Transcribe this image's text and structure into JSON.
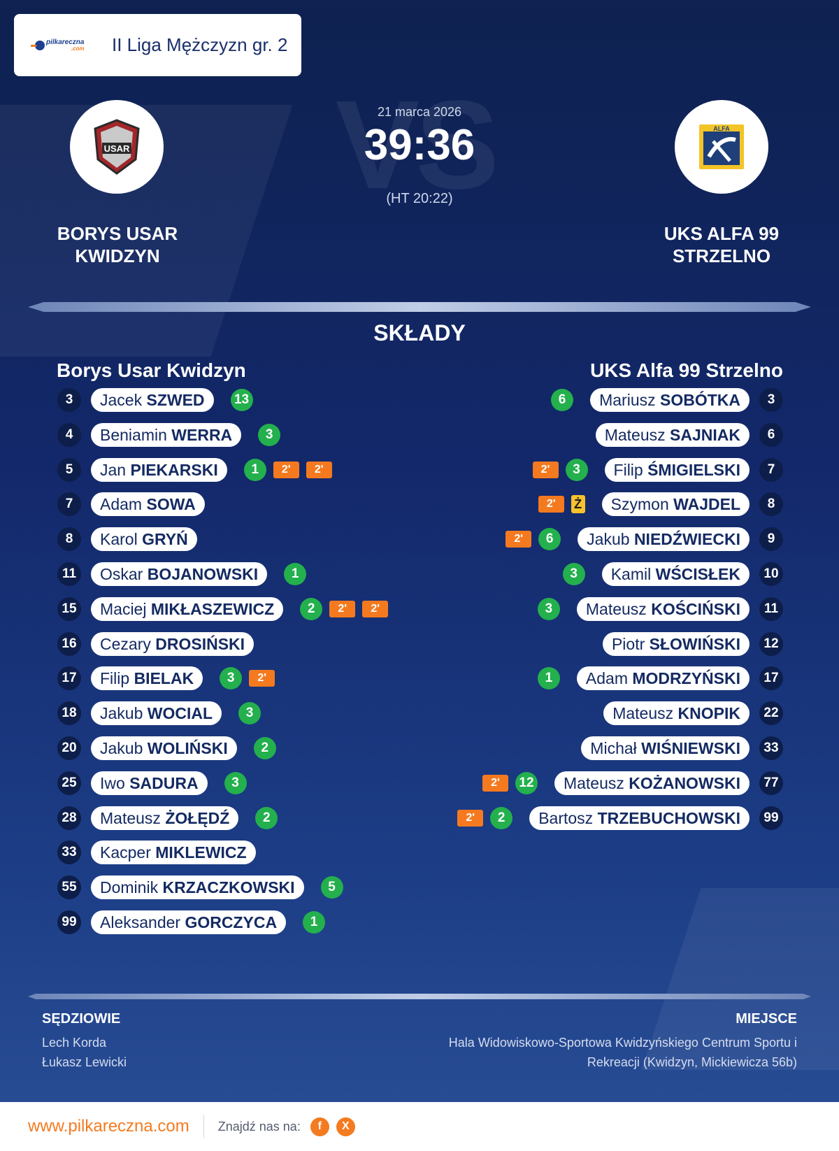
{
  "header": {
    "logo_text": "pilkareczna",
    "logo_sub": ".com",
    "league": "II Liga Mężczyzn gr. 2"
  },
  "match": {
    "date": "21 marca 2026",
    "score": "39:36",
    "halftime": "(HT 20:22)",
    "watermark": "VS"
  },
  "home": {
    "name_upper": "BORYS USAR KWIDZYN",
    "name": "Borys Usar Kwidzyn",
    "logo_text": "USAR",
    "logo_color": "#a3262a",
    "players": [
      {
        "no": "3",
        "first": "Jacek",
        "last": "SZWED",
        "goals": "13",
        "susp": []
      },
      {
        "no": "4",
        "first": "Beniamin",
        "last": "WERRA",
        "goals": "3",
        "susp": []
      },
      {
        "no": "5",
        "first": "Jan",
        "last": "PIEKARSKI",
        "goals": "1",
        "susp": [
          "2'",
          "2'"
        ]
      },
      {
        "no": "7",
        "first": "Adam",
        "last": "SOWA",
        "goals": "",
        "susp": []
      },
      {
        "no": "8",
        "first": "Karol",
        "last": "GRYŃ",
        "goals": "",
        "susp": []
      },
      {
        "no": "11",
        "first": "Oskar",
        "last": "BOJANOWSKI",
        "goals": "1",
        "susp": []
      },
      {
        "no": "15",
        "first": "Maciej",
        "last": "MIKŁASZEWICZ",
        "goals": "2",
        "susp": [
          "2'",
          "2'"
        ]
      },
      {
        "no": "16",
        "first": "Cezary",
        "last": "DROSIŃSKI",
        "goals": "",
        "susp": []
      },
      {
        "no": "17",
        "first": "Filip",
        "last": "BIELAK",
        "goals": "3",
        "susp": [
          "2'"
        ]
      },
      {
        "no": "18",
        "first": "Jakub",
        "last": "WOCIAL",
        "goals": "3",
        "susp": []
      },
      {
        "no": "20",
        "first": "Jakub",
        "last": "WOLIŃSKI",
        "goals": "2",
        "susp": []
      },
      {
        "no": "25",
        "first": "Iwo",
        "last": "SADURA",
        "goals": "3",
        "susp": []
      },
      {
        "no": "28",
        "first": "Mateusz",
        "last": "ŻOŁĘDŹ",
        "goals": "2",
        "susp": []
      },
      {
        "no": "33",
        "first": "Kacper",
        "last": "MIKLEWICZ",
        "goals": "",
        "susp": []
      },
      {
        "no": "55",
        "first": "Dominik",
        "last": "KRZACZKOWSKI",
        "goals": "5",
        "susp": []
      },
      {
        "no": "99",
        "first": "Aleksander",
        "last": "GORCZYCA",
        "goals": "1",
        "susp": []
      }
    ]
  },
  "away": {
    "name_upper": "UKS ALFA 99 STRZELNO",
    "name": "UKS Alfa 99 Strzelno",
    "logo_text": "ALFA",
    "logo_color": "#1e3f7a",
    "players": [
      {
        "no": "3",
        "first": "Mariusz",
        "last": "SOBÓTKA",
        "goals": "6",
        "susp": [],
        "yellow": ""
      },
      {
        "no": "6",
        "first": "Mateusz",
        "last": "SAJNIAK",
        "goals": "",
        "susp": [],
        "yellow": ""
      },
      {
        "no": "7",
        "first": "Filip",
        "last": "ŚMIGIELSKI",
        "goals": "3",
        "susp": [
          "2'"
        ],
        "yellow": ""
      },
      {
        "no": "8",
        "first": "Szymon",
        "last": "WAJDEL",
        "goals": "",
        "susp": [
          "2'"
        ],
        "yellow": "Ż"
      },
      {
        "no": "9",
        "first": "Jakub",
        "last": "NIEDŹWIECKI",
        "goals": "6",
        "susp": [
          "2'"
        ],
        "yellow": ""
      },
      {
        "no": "10",
        "first": "Kamil",
        "last": "WŚCISŁEK",
        "goals": "3",
        "susp": [],
        "yellow": ""
      },
      {
        "no": "11",
        "first": "Mateusz",
        "last": "KOŚCIŃSKI",
        "goals": "3",
        "susp": [],
        "yellow": ""
      },
      {
        "no": "12",
        "first": "Piotr",
        "last": "SŁOWIŃSKI",
        "goals": "",
        "susp": [],
        "yellow": ""
      },
      {
        "no": "17",
        "first": "Adam",
        "last": "MODRZYŃSKI",
        "goals": "1",
        "susp": [],
        "yellow": ""
      },
      {
        "no": "22",
        "first": "Mateusz",
        "last": "KNOPIK",
        "goals": "",
        "susp": [],
        "yellow": ""
      },
      {
        "no": "33",
        "first": "Michał",
        "last": "WIŚNIEWSKI",
        "goals": "",
        "susp": [],
        "yellow": ""
      },
      {
        "no": "77",
        "first": "Mateusz",
        "last": "KOŻANOWSKI",
        "goals": "12",
        "susp": [
          "2'"
        ],
        "yellow": ""
      },
      {
        "no": "99",
        "first": "Bartosz",
        "last": "TRZEBUCHOWSKI",
        "goals": "2",
        "susp": [
          "2'"
        ],
        "yellow": ""
      }
    ]
  },
  "section_title": "SKŁADY",
  "referees": {
    "title": "SĘDZIOWIE",
    "names": [
      "Lech Korda",
      "Łukasz Lewicki"
    ]
  },
  "venue": {
    "title": "MIEJSCE",
    "lines": [
      "Hala Widowiskowo-Sportowa Kwidzyńskiego Centrum Sportu i",
      "Rekreacji (Kwidzyn, Mickiewicza 56b)"
    ]
  },
  "footer": {
    "site": "www.pilkareczna.com",
    "find_us": "Znajdź nas na:",
    "social": [
      {
        "icon": "facebook-icon",
        "glyph": "f"
      },
      {
        "icon": "x-icon",
        "glyph": "X"
      }
    ]
  },
  "colors": {
    "goal": "#23b04d",
    "suspension": "#f57a1f",
    "yellow_card": "#f7c22b",
    "brand_orange": "#f47b20"
  }
}
